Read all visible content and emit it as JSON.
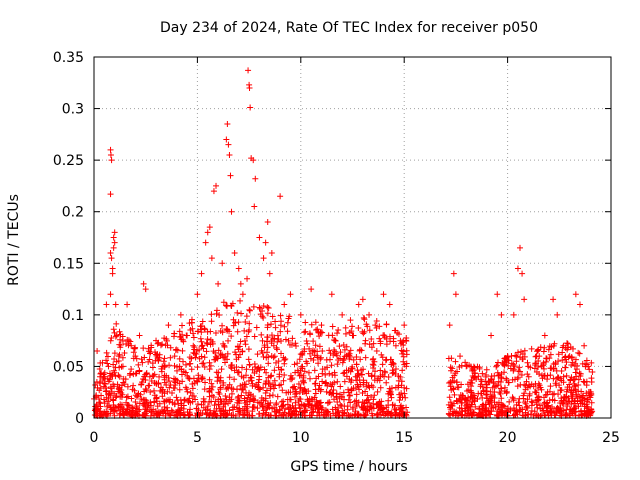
{
  "chart_data": {
    "type": "scatter",
    "title": "Day 234 of 2024, Rate Of TEC Index for receiver p050",
    "xlabel": "GPS time / hours",
    "ylabel": "ROTI / TECUs",
    "xlim": [
      0,
      25
    ],
    "ylim": [
      0,
      0.35
    ],
    "xticks": [
      0,
      5,
      10,
      15,
      20,
      25
    ],
    "xtick_labels": [
      "0",
      "5",
      "10",
      "15",
      "20",
      "25"
    ],
    "yticks": [
      0,
      0.05,
      0.1,
      0.15,
      0.2,
      0.25,
      0.3,
      0.35
    ],
    "ytick_labels": [
      "0",
      "0.05",
      "0.1",
      "0.15",
      "0.2",
      "0.25",
      "0.3",
      "0.35"
    ],
    "grid": true,
    "marker": "+",
    "color": "#ff0000",
    "series": [
      {
        "name": "ROTI",
        "points": [
          [
            0.1,
            0.02
          ],
          [
            0.15,
            0.065
          ],
          [
            0.3,
            0.035
          ],
          [
            0.5,
            0.04
          ],
          [
            0.6,
            0.11
          ],
          [
            0.7,
            0.05
          ],
          [
            0.8,
            0.26
          ],
          [
            0.82,
            0.255
          ],
          [
            0.85,
            0.25
          ],
          [
            0.8,
            0.217
          ],
          [
            0.8,
            0.16
          ],
          [
            0.85,
            0.155
          ],
          [
            0.9,
            0.145
          ],
          [
            0.9,
            0.14
          ],
          [
            0.95,
            0.175
          ],
          [
            1.0,
            0.18
          ],
          [
            1.0,
            0.17
          ],
          [
            0.95,
            0.165
          ],
          [
            0.8,
            0.12
          ],
          [
            1.05,
            0.11
          ],
          [
            1.1,
            0.08
          ],
          [
            1.2,
            0.06
          ],
          [
            1.4,
            0.05
          ],
          [
            1.6,
            0.11
          ],
          [
            1.8,
            0.07
          ],
          [
            2.0,
            0.06
          ],
          [
            2.2,
            0.08
          ],
          [
            2.4,
            0.13
          ],
          [
            2.5,
            0.125
          ],
          [
            2.7,
            0.04
          ],
          [
            3.0,
            0.075
          ],
          [
            3.3,
            0.05
          ],
          [
            3.6,
            0.09
          ],
          [
            3.9,
            0.06
          ],
          [
            4.2,
            0.1
          ],
          [
            4.5,
            0.08
          ],
          [
            4.8,
            0.07
          ],
          [
            5.0,
            0.12
          ],
          [
            5.2,
            0.14
          ],
          [
            5.4,
            0.17
          ],
          [
            5.5,
            0.18
          ],
          [
            5.6,
            0.185
          ],
          [
            5.7,
            0.155
          ],
          [
            5.8,
            0.22
          ],
          [
            5.9,
            0.225
          ],
          [
            6.0,
            0.13
          ],
          [
            6.2,
            0.15
          ],
          [
            6.4,
            0.27
          ],
          [
            6.45,
            0.285
          ],
          [
            6.5,
            0.265
          ],
          [
            6.55,
            0.255
          ],
          [
            6.6,
            0.235
          ],
          [
            6.65,
            0.2
          ],
          [
            6.8,
            0.16
          ],
          [
            7.0,
            0.145
          ],
          [
            7.1,
            0.13
          ],
          [
            7.2,
            0.12
          ],
          [
            7.4,
            0.135
          ],
          [
            7.45,
            0.337
          ],
          [
            7.5,
            0.323
          ],
          [
            7.52,
            0.32
          ],
          [
            7.55,
            0.301
          ],
          [
            7.6,
            0.252
          ],
          [
            7.7,
            0.25
          ],
          [
            7.8,
            0.232
          ],
          [
            7.75,
            0.205
          ],
          [
            8.0,
            0.175
          ],
          [
            8.2,
            0.155
          ],
          [
            8.3,
            0.17
          ],
          [
            8.4,
            0.19
          ],
          [
            8.5,
            0.14
          ],
          [
            8.6,
            0.16
          ],
          [
            9.0,
            0.215
          ],
          [
            9.2,
            0.11
          ],
          [
            9.5,
            0.12
          ],
          [
            10.0,
            0.1
          ],
          [
            10.5,
            0.125
          ],
          [
            11.0,
            0.09
          ],
          [
            11.5,
            0.12
          ],
          [
            12.0,
            0.1
          ],
          [
            12.5,
            0.08
          ],
          [
            12.8,
            0.11
          ],
          [
            13.0,
            0.115
          ],
          [
            13.3,
            0.1
          ],
          [
            13.6,
            0.09
          ],
          [
            14.0,
            0.12
          ],
          [
            14.3,
            0.11
          ],
          [
            14.6,
            0.07
          ],
          [
            15.0,
            0.09
          ],
          [
            15.1,
            0.05
          ],
          [
            17.2,
            0.09
          ],
          [
            17.4,
            0.14
          ],
          [
            17.5,
            0.12
          ],
          [
            17.7,
            0.06
          ],
          [
            18.0,
            0.05
          ],
          [
            18.4,
            0.04
          ],
          [
            18.8,
            0.03
          ],
          [
            19.2,
            0.08
          ],
          [
            19.5,
            0.12
          ],
          [
            19.7,
            0.1
          ],
          [
            20.0,
            0.06
          ],
          [
            20.3,
            0.1
          ],
          [
            20.5,
            0.145
          ],
          [
            20.6,
            0.165
          ],
          [
            20.7,
            0.14
          ],
          [
            20.8,
            0.115
          ],
          [
            21.0,
            0.05
          ],
          [
            21.4,
            0.06
          ],
          [
            21.8,
            0.08
          ],
          [
            22.2,
            0.115
          ],
          [
            22.4,
            0.1
          ],
          [
            22.7,
            0.07
          ],
          [
            23.0,
            0.06
          ],
          [
            23.3,
            0.12
          ],
          [
            23.5,
            0.11
          ],
          [
            23.7,
            0.07
          ],
          [
            23.9,
            0.05
          ],
          [
            24.0,
            0.02
          ]
        ],
        "density_profile": [
          [
            0.0,
            0.03
          ],
          [
            0.6,
            0.05
          ],
          [
            1.0,
            0.07
          ],
          [
            2.0,
            0.055
          ],
          [
            3.0,
            0.055
          ],
          [
            4.0,
            0.065
          ],
          [
            5.0,
            0.075
          ],
          [
            6.0,
            0.085
          ],
          [
            7.0,
            0.09
          ],
          [
            8.0,
            0.085
          ],
          [
            9.0,
            0.08
          ],
          [
            10.0,
            0.075
          ],
          [
            11.0,
            0.07
          ],
          [
            12.0,
            0.07
          ],
          [
            13.0,
            0.075
          ],
          [
            14.0,
            0.07
          ],
          [
            15.0,
            0.06
          ],
          [
            17.2,
            0.045
          ],
          [
            18.0,
            0.04
          ],
          [
            19.0,
            0.035
          ],
          [
            20.0,
            0.045
          ],
          [
            21.0,
            0.05
          ],
          [
            22.0,
            0.055
          ],
          [
            23.0,
            0.055
          ],
          [
            24.0,
            0.04
          ]
        ],
        "coverage_gaps": [
          [
            15.15,
            17.15
          ]
        ]
      }
    ]
  }
}
